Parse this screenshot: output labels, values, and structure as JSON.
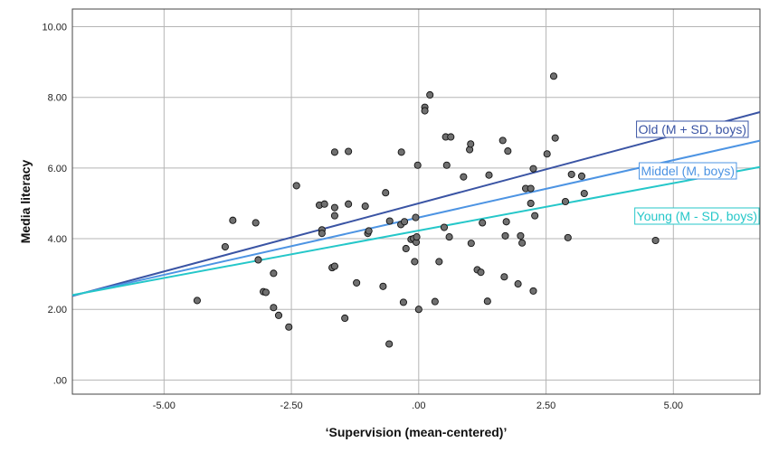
{
  "chart_data": {
    "type": "scatter",
    "xlabel": "‘Supervision (mean-centered)’",
    "ylabel": "Media literacy",
    "xlim": [
      -6.8,
      6.7
    ],
    "ylim": [
      -0.4,
      10.5
    ],
    "x_ticks": [
      -5,
      -2.5,
      0,
      2.5,
      5
    ],
    "x_tick_labels": [
      "-5.00",
      "-2.50",
      ".00",
      "2.50",
      "5.00"
    ],
    "y_ticks": [
      0,
      2,
      4,
      6,
      8,
      10
    ],
    "y_tick_labels": [
      ".00",
      "2.00",
      "4.00",
      "6.00",
      "8.00",
      "10.00"
    ],
    "grid": true,
    "point_color": "#707070",
    "points": [
      [
        -4.35,
        2.25
      ],
      [
        -3.8,
        3.77
      ],
      [
        -3.65,
        4.52
      ],
      [
        -3.2,
        4.45
      ],
      [
        -3.15,
        3.4
      ],
      [
        -3.05,
        2.5
      ],
      [
        -3.0,
        2.48
      ],
      [
        -2.85,
        2.05
      ],
      [
        -2.85,
        3.02
      ],
      [
        -2.75,
        1.83
      ],
      [
        -2.55,
        1.5
      ],
      [
        -2.4,
        5.5
      ],
      [
        -1.95,
        4.95
      ],
      [
        -1.9,
        4.25
      ],
      [
        -1.9,
        4.15
      ],
      [
        -1.85,
        4.98
      ],
      [
        -1.7,
        3.18
      ],
      [
        -1.65,
        3.22
      ],
      [
        -1.65,
        6.45
      ],
      [
        -1.65,
        4.88
      ],
      [
        -1.65,
        4.65
      ],
      [
        -1.45,
        1.75
      ],
      [
        -1.38,
        6.47
      ],
      [
        -1.38,
        4.98
      ],
      [
        -1.22,
        2.75
      ],
      [
        -1.05,
        4.92
      ],
      [
        -1.0,
        4.15
      ],
      [
        -0.98,
        4.22
      ],
      [
        -0.7,
        2.65
      ],
      [
        -0.65,
        5.3
      ],
      [
        -0.58,
        1.02
      ],
      [
        -0.57,
        4.5
      ],
      [
        -0.35,
        4.4
      ],
      [
        -0.34,
        6.45
      ],
      [
        -0.3,
        2.2
      ],
      [
        -0.28,
        4.48
      ],
      [
        -0.25,
        3.72
      ],
      [
        -0.15,
        3.98
      ],
      [
        -0.1,
        4.0
      ],
      [
        -0.08,
        3.35
      ],
      [
        -0.06,
        4.6
      ],
      [
        -0.05,
        3.9
      ],
      [
        -0.04,
        4.05
      ],
      [
        -0.02,
        6.08
      ],
      [
        0.0,
        2.0
      ],
      [
        0.12,
        7.72
      ],
      [
        0.12,
        7.62
      ],
      [
        0.22,
        8.07
      ],
      [
        0.32,
        2.22
      ],
      [
        0.4,
        3.35
      ],
      [
        0.5,
        4.32
      ],
      [
        0.53,
        6.88
      ],
      [
        0.55,
        6.08
      ],
      [
        0.6,
        4.05
      ],
      [
        0.63,
        6.88
      ],
      [
        0.88,
        5.75
      ],
      [
        1.0,
        6.52
      ],
      [
        1.02,
        6.68
      ],
      [
        1.03,
        3.87
      ],
      [
        1.15,
        3.12
      ],
      [
        1.22,
        3.05
      ],
      [
        1.25,
        4.45
      ],
      [
        1.35,
        2.23
      ],
      [
        1.38,
        5.8
      ],
      [
        1.65,
        6.78
      ],
      [
        1.68,
        2.92
      ],
      [
        1.7,
        4.08
      ],
      [
        1.72,
        4.48
      ],
      [
        1.75,
        6.48
      ],
      [
        1.95,
        2.72
      ],
      [
        2.0,
        4.08
      ],
      [
        2.03,
        3.88
      ],
      [
        2.1,
        5.42
      ],
      [
        2.2,
        5.42
      ],
      [
        2.2,
        5.0
      ],
      [
        2.25,
        2.52
      ],
      [
        2.25,
        5.98
      ],
      [
        2.28,
        4.65
      ],
      [
        2.52,
        6.4
      ],
      [
        2.65,
        8.6
      ],
      [
        2.68,
        6.85
      ],
      [
        2.88,
        5.05
      ],
      [
        2.93,
        4.03
      ],
      [
        3.0,
        5.82
      ],
      [
        3.2,
        5.77
      ],
      [
        3.25,
        5.28
      ],
      [
        4.65,
        3.95
      ]
    ],
    "series": [
      {
        "name": "Old (M + SD, boys)",
        "color": "#3a54a4",
        "intercept": 5.0,
        "slope": 0.3855
      },
      {
        "name": "Middel (M, boys)",
        "color": "#4d94e3",
        "intercept": 4.6,
        "slope": 0.3245
      },
      {
        "name": "Young (M - SD, boys)",
        "color": "#25c7c9",
        "intercept": 4.23,
        "slope": 0.2685
      }
    ]
  }
}
